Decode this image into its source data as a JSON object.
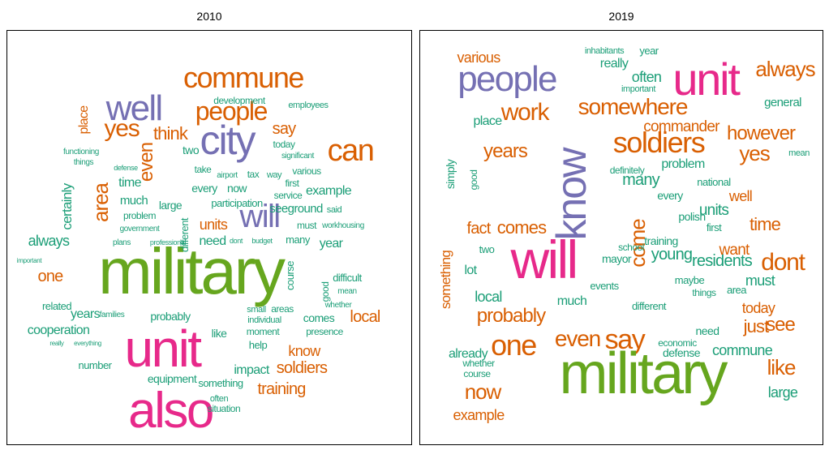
{
  "panels": [
    {
      "title": "2010",
      "words": [
        "commune",
        "people",
        "well",
        "city",
        "yes",
        "think",
        "say",
        "can",
        "development",
        "employees",
        "even",
        "area",
        "will",
        "certainly",
        "time",
        "much",
        "large",
        "two",
        "place",
        "seeground",
        "example",
        "service",
        "every",
        "now",
        "participation",
        "units",
        "need",
        "year",
        "many",
        "must",
        "workhousing",
        "always",
        "military",
        "one",
        "related",
        "years",
        "probably",
        "local",
        "cooperation",
        "unit",
        "also",
        "know",
        "soldiers",
        "training",
        "impact",
        "help",
        "like",
        "presence",
        "comes",
        "course",
        "difficult",
        "number",
        "equipment",
        "something",
        "often",
        "situation",
        "moment",
        "individual",
        "small",
        "areas",
        "today",
        "first",
        "tax",
        "airport",
        "way",
        "various",
        "take",
        "significant",
        "said",
        "problem",
        "different",
        "families",
        "mean",
        "good",
        "whether",
        "important",
        "really",
        "everything",
        "government",
        "plans",
        "professional",
        "budget",
        "dont",
        "functioning",
        "things",
        "defense"
      ]
    },
    {
      "title": "2019",
      "words": [
        "various",
        "inhabitants",
        "year",
        "really",
        "people",
        "unit",
        "always",
        "often",
        "important",
        "work",
        "somewhere",
        "general",
        "place",
        "soldiers",
        "commander",
        "however",
        "yes",
        "mean",
        "know",
        "years",
        "many",
        "every",
        "well",
        "time",
        "units",
        "first",
        "problem",
        "definitely",
        "national",
        "fact",
        "comes",
        "will",
        "come",
        "young",
        "residents",
        "dont",
        "want",
        "must",
        "training",
        "school",
        "mayor",
        "lot",
        "two",
        "local",
        "something",
        "much",
        "probably",
        "one",
        "even",
        "say",
        "already",
        "see",
        "just",
        "today",
        "need",
        "defense",
        "commune",
        "like",
        "large",
        "military",
        "now",
        "example",
        "whether",
        "course",
        "different",
        "maybe",
        "things",
        "area",
        "polish",
        "events",
        "economic",
        "simply",
        "good"
      ]
    }
  ]
}
